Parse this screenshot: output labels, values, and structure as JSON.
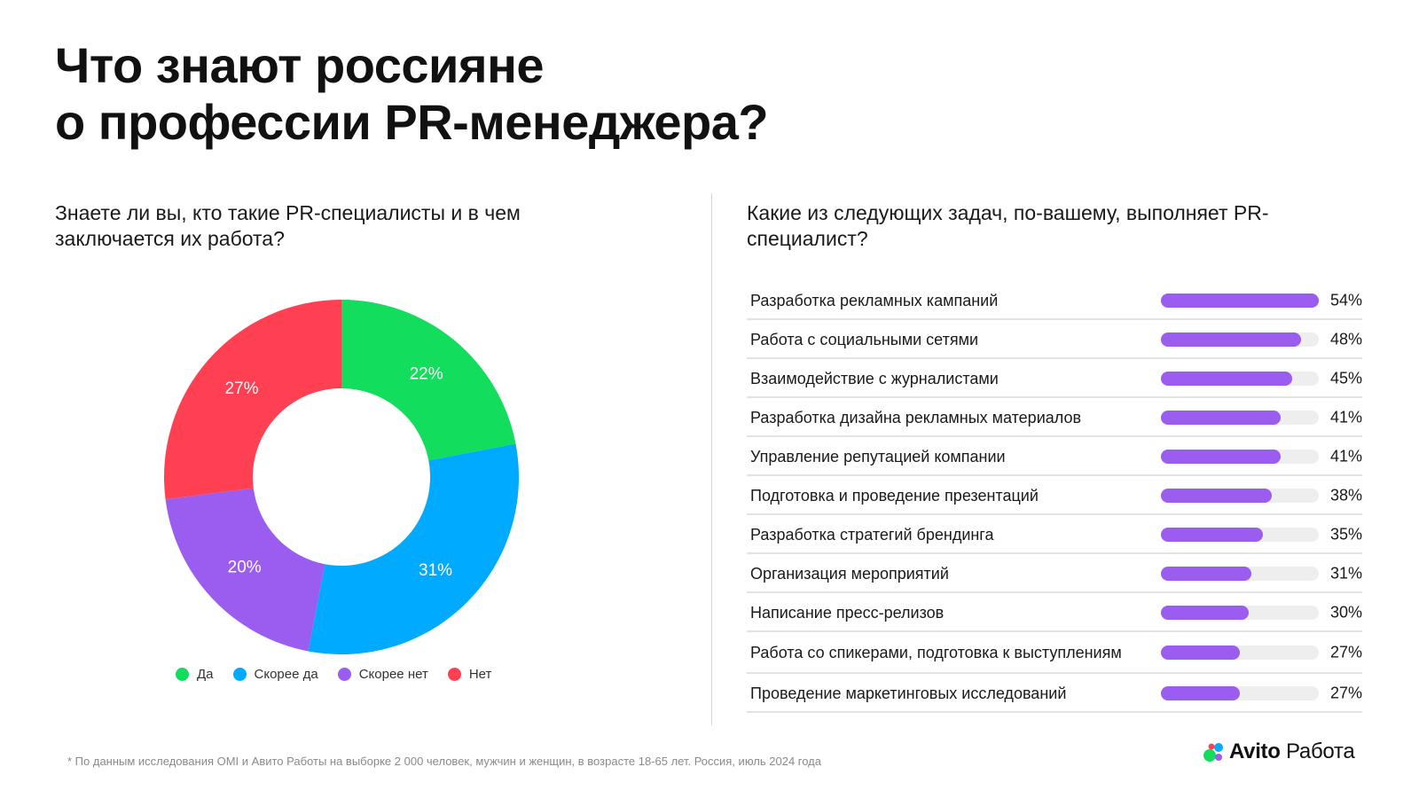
{
  "title": {
    "line1": "Что знают россияне",
    "line2": "о профессии PR-менеджера?"
  },
  "left_question": "Знаете ли вы, кто такие PR-специалисты и в чем заключается их работа?",
  "right_question": "Какие из следующих задач, по-вашему, выполняет PR-специалист?",
  "chart_data": [
    {
      "type": "pie",
      "variant": "donut",
      "categories": [
        "Да",
        "Скорее да",
        "Скорее нет",
        "Нет"
      ],
      "values": [
        22,
        31,
        20,
        27
      ],
      "labels": [
        "22%",
        "31%",
        "20%",
        "27%"
      ],
      "colors": [
        "#12dd5c",
        "#00aaff",
        "#9b5cf0",
        "#ff4053"
      ],
      "legend_position": "bottom"
    },
    {
      "type": "bar",
      "orientation": "horizontal",
      "categories": [
        "Разработка рекламных кампаний",
        "Работа с социальными сетями",
        "Взаимодействие с журналистами",
        "Разработка дизайна рекламных материалов",
        "Управление репутацией компании",
        "Подготовка и проведение презентаций",
        "Разработка стратегий брендинга",
        "Организация мероприятий",
        "Написание пресс-релизов",
        "Работа со спикерами, подготовка к выступлениям",
        "Проведение маркетинговых исследований"
      ],
      "values": [
        54,
        48,
        45,
        41,
        41,
        38,
        35,
        31,
        30,
        27,
        27
      ],
      "labels": [
        "54%",
        "48%",
        "45%",
        "41%",
        "41%",
        "38%",
        "35%",
        "31%",
        "30%",
        "27%",
        "27%"
      ],
      "xlim": [
        0,
        54
      ],
      "color": "#9b5cf0",
      "grid": false
    }
  ],
  "footnote": "* По данным исследования OMI и Авито Работы на выборке 2 000 человек, мужчин и женщин, в возрасте 18-65 лет. Россия, июль 2024 года",
  "logo": {
    "brand": "Avito",
    "product": "Работа",
    "dot_colors": [
      "#12dd5c",
      "#00aaff",
      "#9b5cf0",
      "#ff4053"
    ]
  }
}
